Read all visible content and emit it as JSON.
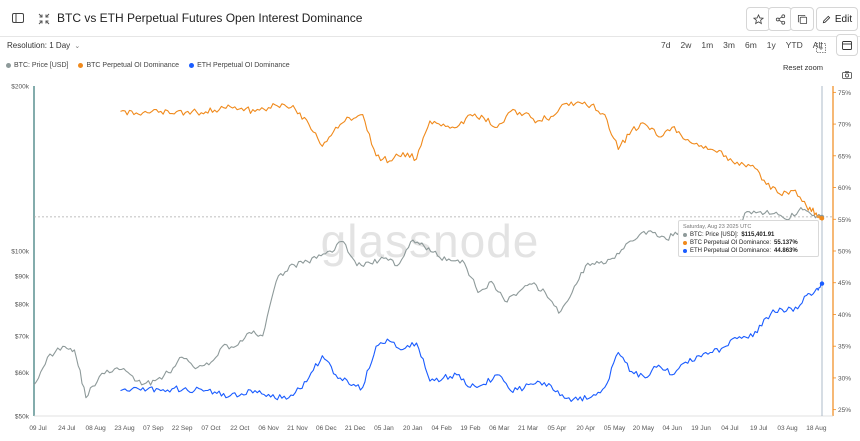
{
  "header": {
    "title": "BTC vs ETH Perpetual Futures Open Interest Dominance",
    "edit_label": "Edit"
  },
  "controls": {
    "resolution_label": "Resolution: 1 Day",
    "ranges": [
      "7d",
      "2w",
      "1m",
      "3m",
      "6m",
      "1y",
      "YTD",
      "All"
    ],
    "reset_zoom_label": "Reset zoom"
  },
  "legend": [
    {
      "label": "BTC: Price [USD]",
      "color": "#8e9a9a"
    },
    {
      "label": "BTC Perpetual OI Dominance",
      "color": "#f08a1c"
    },
    {
      "label": "ETH Perpetual OI Dominance",
      "color": "#1a5cff"
    }
  ],
  "watermark": "glassnode",
  "tooltip": {
    "date": "Saturday, Aug 23 2025 UTC",
    "rows": [
      {
        "label": "BTC: Price [USD]:",
        "value": "$115,401.91",
        "color": "#8e9a9a"
      },
      {
        "label": "BTC Perpetual OI Dominance:",
        "value": "55.137%",
        "color": "#f08a1c"
      },
      {
        "label": "ETH Perpetual OI Dominance:",
        "value": "44.863%",
        "color": "#1a5cff"
      }
    ]
  },
  "chart_data": {
    "type": "line",
    "title": "BTC vs ETH Perpetual Futures Open Interest Dominance",
    "x_start": "2024-07-09",
    "x_end": "2025-08-23",
    "x_tick_labels": [
      "09 Jul",
      "24 Jul",
      "08 Aug",
      "23 Aug",
      "07 Sep",
      "22 Sep",
      "07 Oct",
      "22 Oct",
      "06 Nov",
      "21 Nov",
      "06 Dec",
      "21 Dec",
      "05 Jan",
      "20 Jan",
      "04 Feb",
      "19 Feb",
      "06 Mar",
      "21 Mar",
      "05 Apr",
      "20 Apr",
      "05 May",
      "20 May",
      "04 Jun",
      "19 Jun",
      "04 Jul",
      "19 Jul",
      "03 Aug",
      "18 Aug"
    ],
    "left_axis": {
      "label": "BTC: Price [USD]",
      "scale": "log",
      "ticks": [
        50000,
        60000,
        70000,
        80000,
        90000,
        100000,
        200000
      ],
      "tick_labels": [
        "$50k",
        "$60k",
        "$70k",
        "$80k",
        "$90k",
        "$100k",
        "$200k"
      ]
    },
    "right_axis": {
      "label": "Dominance",
      "range": [
        24,
        76
      ],
      "ticks": [
        25,
        30,
        35,
        40,
        45,
        50,
        55,
        60,
        65,
        70,
        75
      ],
      "tick_labels": [
        "25%",
        "30%",
        "35%",
        "40%",
        "45%",
        "50%",
        "55%",
        "60%",
        "65%",
        "70%",
        "75%"
      ]
    },
    "grid": false,
    "legend_position": "top-left",
    "crosshair_date": "2025-08-23",
    "series": [
      {
        "name": "BTC: Price [USD]",
        "axis": "left",
        "color": "#8e9a9a",
        "x": [
          "2024-07-09",
          "2024-07-16",
          "2024-07-24",
          "2024-07-30",
          "2024-08-05",
          "2024-08-12",
          "2024-08-20",
          "2024-08-27",
          "2024-09-03",
          "2024-09-10",
          "2024-09-17",
          "2024-09-24",
          "2024-10-01",
          "2024-10-08",
          "2024-10-15",
          "2024-10-22",
          "2024-10-29",
          "2024-11-05",
          "2024-11-12",
          "2024-11-19",
          "2024-11-26",
          "2024-12-03",
          "2024-12-10",
          "2024-12-17",
          "2024-12-24",
          "2024-12-31",
          "2025-01-07",
          "2025-01-14",
          "2025-01-21",
          "2025-01-28",
          "2025-02-04",
          "2025-02-11",
          "2025-02-18",
          "2025-02-25",
          "2025-03-04",
          "2025-03-11",
          "2025-03-18",
          "2025-03-25",
          "2025-04-01",
          "2025-04-08",
          "2025-04-15",
          "2025-04-22",
          "2025-04-29",
          "2025-05-06",
          "2025-05-13",
          "2025-05-20",
          "2025-05-27",
          "2025-06-03",
          "2025-06-10",
          "2025-06-17",
          "2025-06-24",
          "2025-07-01",
          "2025-07-08",
          "2025-07-15",
          "2025-07-22",
          "2025-07-29",
          "2025-08-05",
          "2025-08-12",
          "2025-08-18",
          "2025-08-23"
        ],
        "values": [
          57000,
          64000,
          67000,
          66000,
          54000,
          59000,
          61000,
          60000,
          57000,
          58000,
          60000,
          64000,
          61000,
          62000,
          67000,
          67000,
          71000,
          70000,
          88000,
          94000,
          95000,
          97000,
          100000,
          104000,
          94000,
          95000,
          97000,
          94000,
          104000,
          102000,
          98000,
          96000,
          95000,
          84000,
          88000,
          81000,
          84000,
          87000,
          84000,
          77000,
          84000,
          94000,
          95000,
          97000,
          103000,
          107000,
          108000,
          105000,
          109000,
          105000,
          107000,
          107000,
          109000,
          118000,
          118000,
          117000,
          114000,
          120000,
          116000,
          115402
        ]
      },
      {
        "name": "BTC Perpetual OI Dominance",
        "axis": "right",
        "color": "#f08a1c",
        "x": [
          "2024-08-23",
          "2024-08-30",
          "2024-09-06",
          "2024-09-13",
          "2024-09-20",
          "2024-09-27",
          "2024-10-04",
          "2024-10-11",
          "2024-10-18",
          "2024-10-25",
          "2024-11-01",
          "2024-11-08",
          "2024-11-15",
          "2024-11-22",
          "2024-11-29",
          "2024-12-06",
          "2024-12-13",
          "2024-12-20",
          "2024-12-27",
          "2025-01-03",
          "2025-01-10",
          "2025-01-17",
          "2025-01-24",
          "2025-01-31",
          "2025-02-07",
          "2025-02-14",
          "2025-02-21",
          "2025-02-28",
          "2025-03-07",
          "2025-03-14",
          "2025-03-21",
          "2025-03-28",
          "2025-04-04",
          "2025-04-11",
          "2025-04-18",
          "2025-04-25",
          "2025-05-02",
          "2025-05-09",
          "2025-05-16",
          "2025-05-23",
          "2025-05-30",
          "2025-06-06",
          "2025-06-13",
          "2025-06-20",
          "2025-06-27",
          "2025-07-04",
          "2025-07-11",
          "2025-07-18",
          "2025-07-25",
          "2025-08-01",
          "2025-08-08",
          "2025-08-15",
          "2025-08-20",
          "2025-08-23"
        ],
        "values": [
          72,
          71.5,
          71.8,
          72,
          71.6,
          72,
          71.8,
          72.2,
          73,
          72.5,
          72,
          72.6,
          73.2,
          72.3,
          70,
          66.5,
          69.5,
          71,
          71.5,
          65,
          64.2,
          65.5,
          64.5,
          70.5,
          70,
          69.5,
          71.5,
          71,
          69.5,
          72,
          71.6,
          70.5,
          71.2,
          73.2,
          73.5,
          73,
          71.5,
          66,
          69,
          70,
          68,
          69.5,
          67.5,
          66.5,
          66,
          65,
          63.5,
          63.5,
          60.5,
          59,
          59.5,
          57,
          56,
          55.14
        ]
      },
      {
        "name": "ETH Perpetual OI Dominance",
        "axis": "right",
        "color": "#1a5cff",
        "x": [
          "2024-08-23",
          "2024-08-30",
          "2024-09-06",
          "2024-09-13",
          "2024-09-20",
          "2024-09-27",
          "2024-10-04",
          "2024-10-11",
          "2024-10-18",
          "2024-10-25",
          "2024-11-01",
          "2024-11-08",
          "2024-11-15",
          "2024-11-22",
          "2024-11-29",
          "2024-12-06",
          "2024-12-13",
          "2024-12-20",
          "2024-12-27",
          "2025-01-03",
          "2025-01-10",
          "2025-01-17",
          "2025-01-24",
          "2025-01-31",
          "2025-02-07",
          "2025-02-14",
          "2025-02-21",
          "2025-02-28",
          "2025-03-07",
          "2025-03-14",
          "2025-03-21",
          "2025-03-28",
          "2025-04-04",
          "2025-04-11",
          "2025-04-18",
          "2025-04-25",
          "2025-05-02",
          "2025-05-09",
          "2025-05-16",
          "2025-05-23",
          "2025-05-30",
          "2025-06-06",
          "2025-06-13",
          "2025-06-20",
          "2025-06-27",
          "2025-07-04",
          "2025-07-11",
          "2025-07-18",
          "2025-07-25",
          "2025-08-01",
          "2025-08-08",
          "2025-08-15",
          "2025-08-20",
          "2025-08-23"
        ],
        "values": [
          28,
          28.5,
          28.2,
          28,
          28.4,
          28,
          28.2,
          27.8,
          27,
          27.5,
          28,
          27.4,
          26.8,
          27.7,
          30,
          33.5,
          30.5,
          29,
          28.5,
          35,
          35.8,
          34.5,
          35.5,
          29.5,
          30,
          30.5,
          28.5,
          29,
          30.5,
          28,
          28.4,
          29.5,
          28.8,
          26.8,
          26.5,
          27,
          28.5,
          34,
          31,
          30,
          32,
          30.5,
          32.5,
          33.5,
          34,
          35,
          36.5,
          36.5,
          39.5,
          41,
          40.5,
          43,
          44,
          44.86
        ]
      }
    ]
  }
}
